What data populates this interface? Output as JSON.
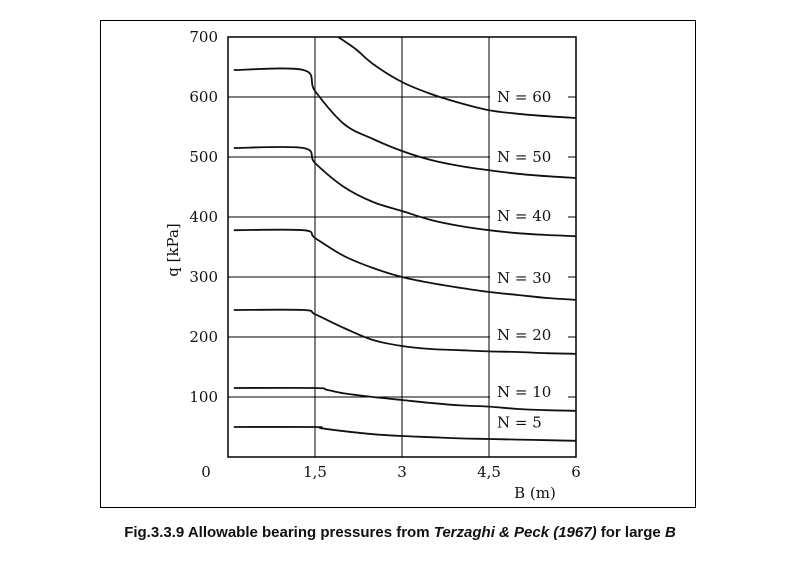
{
  "chart_data": {
    "type": "line",
    "title": "",
    "xlabel": "B (m)",
    "ylabel": "q [kPa]",
    "xlim": [
      0,
      6
    ],
    "ylim": [
      0,
      700
    ],
    "x_ticks": [
      "1,5",
      "3",
      "4,5",
      "6"
    ],
    "y_ticks": [
      "700",
      "600",
      "500",
      "400",
      "300",
      "200",
      "100"
    ],
    "origin_label": "0",
    "grid": true,
    "series": [
      {
        "name": "N = 5",
        "x": [
          0.1,
          1.5,
          1.6,
          2,
          2.5,
          3,
          3.5,
          4,
          4.5,
          5,
          5.5,
          6
        ],
        "y": [
          50,
          50,
          48,
          43,
          38,
          35,
          33,
          31,
          30,
          29,
          28,
          27
        ]
      },
      {
        "name": "N = 10",
        "x": [
          0.1,
          1.5,
          1.7,
          2,
          2.5,
          3,
          3.5,
          4,
          4.5,
          5,
          5.5,
          6
        ],
        "y": [
          115,
          115,
          112,
          106,
          100,
          95,
          90,
          86,
          84,
          80,
          78,
          77
        ]
      },
      {
        "name": "N = 20",
        "x": [
          0.1,
          1.3,
          1.5,
          2,
          2.5,
          3,
          3.5,
          4,
          4.5,
          5,
          5.5,
          6
        ],
        "y": [
          245,
          245,
          238,
          215,
          195,
          185,
          180,
          178,
          176,
          175,
          173,
          172
        ]
      },
      {
        "name": "N = 30",
        "x": [
          0.1,
          1.3,
          1.5,
          2,
          2.5,
          3,
          3.5,
          4,
          4.5,
          5,
          5.5,
          6
        ],
        "y": [
          378,
          378,
          365,
          335,
          315,
          300,
          290,
          282,
          275,
          270,
          265,
          262
        ]
      },
      {
        "name": "N = 40",
        "x": [
          0.1,
          1.3,
          1.5,
          2,
          2.5,
          3,
          3.5,
          4,
          4.5,
          5,
          5.5,
          6
        ],
        "y": [
          515,
          515,
          490,
          450,
          425,
          410,
          395,
          385,
          378,
          373,
          370,
          368
        ]
      },
      {
        "name": "N = 50",
        "x": [
          0.1,
          1.3,
          1.5,
          2,
          2.5,
          3,
          3.5,
          4,
          4.5,
          5,
          5.5,
          6
        ],
        "y": [
          645,
          645,
          610,
          555,
          530,
          510,
          495,
          485,
          478,
          472,
          468,
          465
        ]
      },
      {
        "name": "N = 60",
        "x": [
          1.9,
          2.2,
          2.5,
          3,
          3.5,
          4,
          4.5,
          5,
          5.5,
          6
        ],
        "y": [
          700,
          680,
          655,
          625,
          605,
          590,
          578,
          572,
          568,
          565
        ]
      }
    ]
  },
  "caption": {
    "prefix": "Fig.3.3.9  Allowable bearing pressures from ",
    "source": "Terzaghi & Peck (1967)",
    "middle": " for large ",
    "variable": "B"
  }
}
